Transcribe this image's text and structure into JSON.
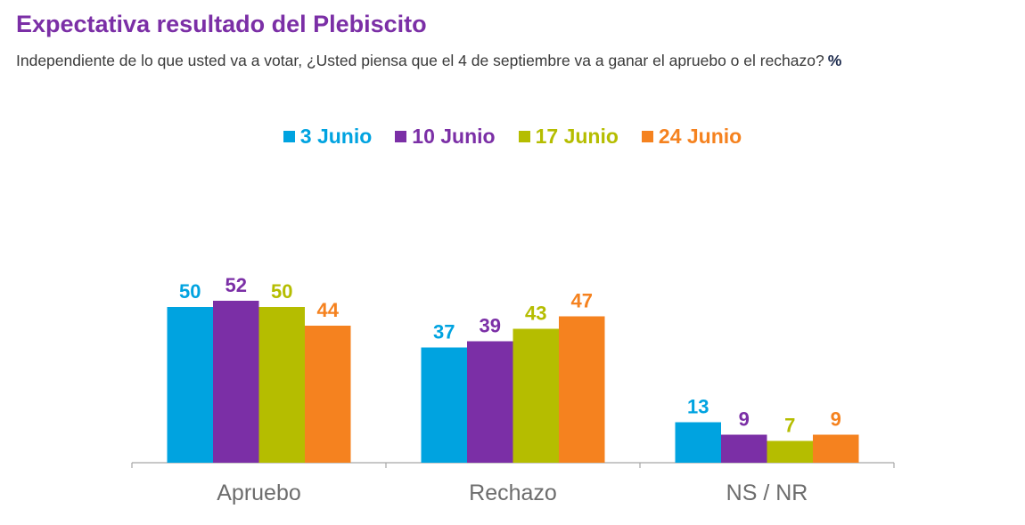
{
  "title": "Expectativa resultado del Plebiscito",
  "subtitle": "Independiente de lo que usted va a votar, ¿Usted piensa que el 4 de septiembre va a ganar el apruebo o el rechazo?",
  "unit": "%",
  "colors": {
    "title": "#7B2FA6",
    "3 Junio": "#00A3E0",
    "10 Junio": "#7B2FA6",
    "17 Junio": "#B5BD00",
    "24 Junio": "#F5821F"
  },
  "chart_data": {
    "type": "bar",
    "categories": [
      "Apruebo",
      "Rechazo",
      "NS / NR"
    ],
    "series": [
      {
        "name": "3 Junio",
        "values": [
          50,
          37,
          13
        ]
      },
      {
        "name": "10 Junio",
        "values": [
          52,
          39,
          9
        ]
      },
      {
        "name": "17 Junio",
        "values": [
          50,
          43,
          7
        ]
      },
      {
        "name": "24 Junio",
        "values": [
          44,
          47,
          9
        ]
      }
    ],
    "legend_position": "top-center",
    "grid": false,
    "data_labels": true
  }
}
